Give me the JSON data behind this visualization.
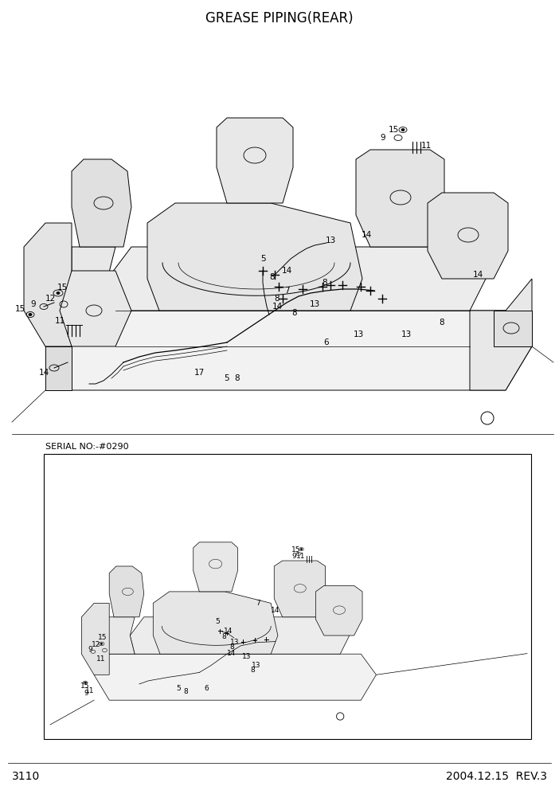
{
  "title": "GREASE PIPING(REAR)",
  "page_number": "3110",
  "date_rev": "2004.12.15  REV.3",
  "serial_label": "SERIAL NO:-#0290",
  "bg_color": "#ffffff",
  "line_color": "#000000",
  "title_fontsize": 12,
  "label_fontsize": 7.5,
  "footer_fontsize": 10,
  "fig_width": 7.02,
  "fig_height": 9.92,
  "main_diagram": {
    "ox": 0,
    "oy": 0
  }
}
